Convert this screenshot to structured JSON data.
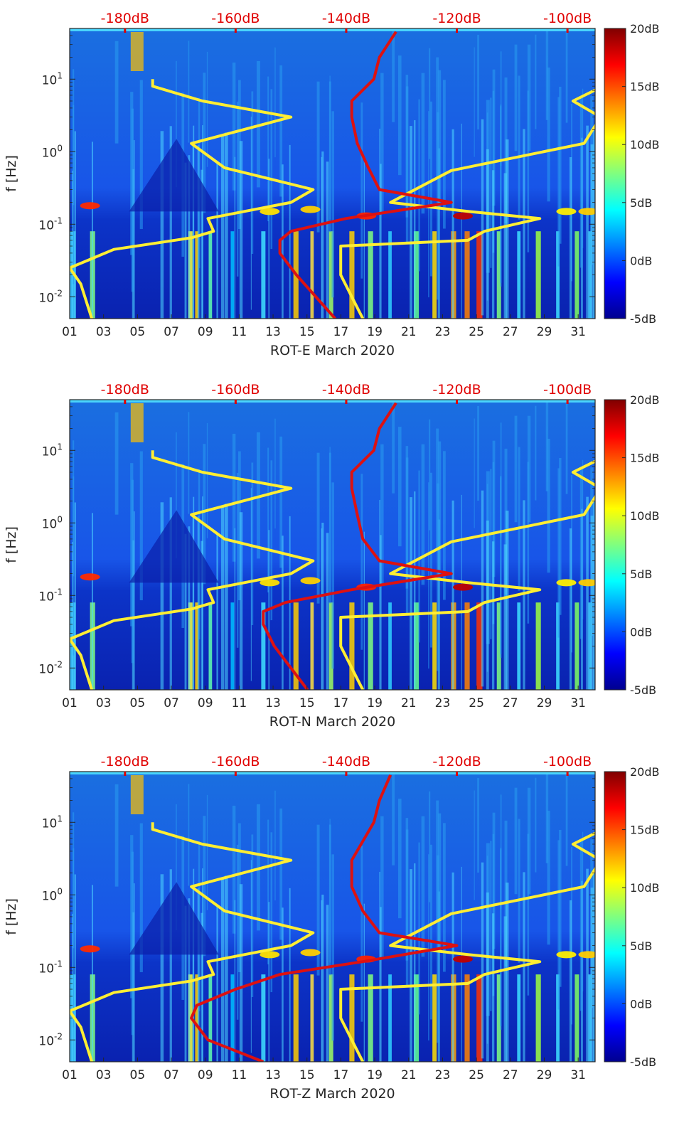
{
  "chart_data": [
    {
      "type": "heatmap",
      "xlabel": "ROT-E March 2020",
      "ylabel": "f [Hz]",
      "x_ticks": [
        "01",
        "03",
        "05",
        "07",
        "09",
        "11",
        "13",
        "15",
        "17",
        "19",
        "21",
        "23",
        "25",
        "27",
        "29",
        "31"
      ],
      "xlim": [
        1,
        32
      ],
      "y_ticks": [
        "10-2",
        "10-1",
        "100",
        "101"
      ],
      "ylim": [
        0.005,
        50
      ],
      "y_scale": "log",
      "top_axis_labels": [
        "-180dB",
        "-160dB",
        "-140dB",
        "-120dB",
        "-100dB"
      ],
      "top_axis_range_db": [
        -190,
        -95
      ],
      "colorbar": {
        "labels": [
          "20dB",
          "15dB",
          "10dB",
          "5dB",
          "0dB",
          "-5dB"
        ],
        "range": [
          -5,
          20
        ],
        "colormap": "jet"
      },
      "series": [
        {
          "color": "#ffee33",
          "x_db": [
            -186,
            -188,
            -190,
            -182,
            -168,
            -164,
            -165,
            -150,
            -146,
            -162,
            -168,
            -150,
            -166,
            -175,
            -175
          ],
          "f_hz": [
            0.005,
            0.015,
            0.025,
            0.045,
            0.065,
            0.08,
            0.12,
            0.2,
            0.3,
            0.6,
            1.3,
            3,
            5,
            8,
            10
          ]
        },
        {
          "color": "#ffee33",
          "x_db": [
            -137,
            -141,
            -141,
            -118,
            -115,
            -105,
            -118,
            -132,
            -121,
            -97,
            -94,
            -99,
            -91
          ],
          "f_hz": [
            0.005,
            0.02,
            0.05,
            0.06,
            0.08,
            0.12,
            0.15,
            0.2,
            0.55,
            1.3,
            3,
            5,
            10
          ]
        },
        {
          "color": "#dd1111",
          "x_db": [
            -142,
            -149,
            -152,
            -152,
            -150,
            -140,
            -121,
            -134,
            -136,
            -138,
            -139,
            -139,
            -135,
            -134,
            -131
          ],
          "f_hz": [
            0.005,
            0.02,
            0.04,
            0.06,
            0.08,
            0.12,
            0.2,
            0.3,
            0.6,
            1.3,
            3,
            5,
            10,
            20,
            45
          ]
        }
      ]
    },
    {
      "type": "heatmap",
      "xlabel": "ROT-N March 2020",
      "ylabel": "f [Hz]",
      "x_ticks": [
        "01",
        "03",
        "05",
        "07",
        "09",
        "11",
        "13",
        "15",
        "17",
        "19",
        "21",
        "23",
        "25",
        "27",
        "29",
        "31"
      ],
      "xlim": [
        1,
        32
      ],
      "y_ticks": [
        "10-2",
        "10-1",
        "100",
        "101"
      ],
      "ylim": [
        0.005,
        50
      ],
      "y_scale": "log",
      "top_axis_labels": [
        "-180dB",
        "-160dB",
        "-140dB",
        "-120dB",
        "-100dB"
      ],
      "top_axis_range_db": [
        -190,
        -95
      ],
      "colorbar": {
        "labels": [
          "20dB",
          "15dB",
          "10dB",
          "5dB",
          "0dB",
          "-5dB"
        ],
        "range": [
          -5,
          20
        ],
        "colormap": "jet"
      },
      "series": [
        {
          "color": "#ffee33",
          "x_db": [
            -186,
            -188,
            -190,
            -182,
            -168,
            -164,
            -165,
            -150,
            -146,
            -162,
            -168,
            -150,
            -166,
            -175,
            -175
          ],
          "f_hz": [
            0.005,
            0.015,
            0.025,
            0.045,
            0.065,
            0.08,
            0.12,
            0.2,
            0.3,
            0.6,
            1.3,
            3,
            5,
            8,
            10
          ]
        },
        {
          "color": "#ffee33",
          "x_db": [
            -137,
            -141,
            -141,
            -118,
            -115,
            -105,
            -118,
            -132,
            -121,
            -97,
            -94,
            -99,
            -91
          ],
          "f_hz": [
            0.005,
            0.02,
            0.05,
            0.06,
            0.08,
            0.12,
            0.15,
            0.2,
            0.55,
            1.3,
            3,
            5,
            10
          ]
        },
        {
          "color": "#dd1111",
          "x_db": [
            -147,
            -153,
            -155,
            -155,
            -151,
            -139,
            -121,
            -134,
            -137,
            -138,
            -139,
            -139,
            -135,
            -134,
            -131
          ],
          "f_hz": [
            0.005,
            0.02,
            0.04,
            0.06,
            0.08,
            0.12,
            0.2,
            0.3,
            0.6,
            1.3,
            3,
            5,
            10,
            20,
            45
          ]
        }
      ]
    },
    {
      "type": "heatmap",
      "xlabel": "ROT-Z March 2020",
      "ylabel": "f [Hz]",
      "x_ticks": [
        "01",
        "03",
        "05",
        "07",
        "09",
        "11",
        "13",
        "15",
        "17",
        "19",
        "21",
        "23",
        "25",
        "27",
        "29",
        "31"
      ],
      "xlim": [
        1,
        32
      ],
      "y_ticks": [
        "10-2",
        "10-1",
        "100",
        "101"
      ],
      "ylim": [
        0.005,
        50
      ],
      "y_scale": "log",
      "top_axis_labels": [
        "-180dB",
        "-160dB",
        "-140dB",
        "-120dB",
        "-100dB"
      ],
      "top_axis_range_db": [
        -190,
        -95
      ],
      "colorbar": {
        "labels": [
          "20dB",
          "15dB",
          "10dB",
          "5dB",
          "0dB",
          "-5dB"
        ],
        "range": [
          -5,
          20
        ],
        "colormap": "jet"
      },
      "series": [
        {
          "color": "#ffee33",
          "x_db": [
            -186,
            -188,
            -190,
            -182,
            -168,
            -164,
            -165,
            -150,
            -146,
            -162,
            -168,
            -150,
            -166,
            -175,
            -175
          ],
          "f_hz": [
            0.005,
            0.015,
            0.025,
            0.045,
            0.065,
            0.08,
            0.12,
            0.2,
            0.3,
            0.6,
            1.3,
            3,
            5,
            8,
            10
          ]
        },
        {
          "color": "#ffee33",
          "x_db": [
            -137,
            -141,
            -141,
            -118,
            -115,
            -105,
            -118,
            -132,
            -121,
            -97,
            -94,
            -99,
            -91
          ],
          "f_hz": [
            0.005,
            0.02,
            0.05,
            0.06,
            0.08,
            0.12,
            0.15,
            0.2,
            0.55,
            1.3,
            3,
            5,
            10
          ]
        },
        {
          "color": "#dd1111",
          "x_db": [
            -155,
            -165,
            -168,
            -167,
            -160,
            -152,
            -137,
            -120,
            -134,
            -137,
            -139,
            -139,
            -135,
            -134,
            -132
          ],
          "f_hz": [
            0.005,
            0.01,
            0.02,
            0.03,
            0.05,
            0.08,
            0.12,
            0.2,
            0.3,
            0.6,
            1.3,
            3,
            10,
            20,
            45
          ]
        }
      ]
    }
  ]
}
